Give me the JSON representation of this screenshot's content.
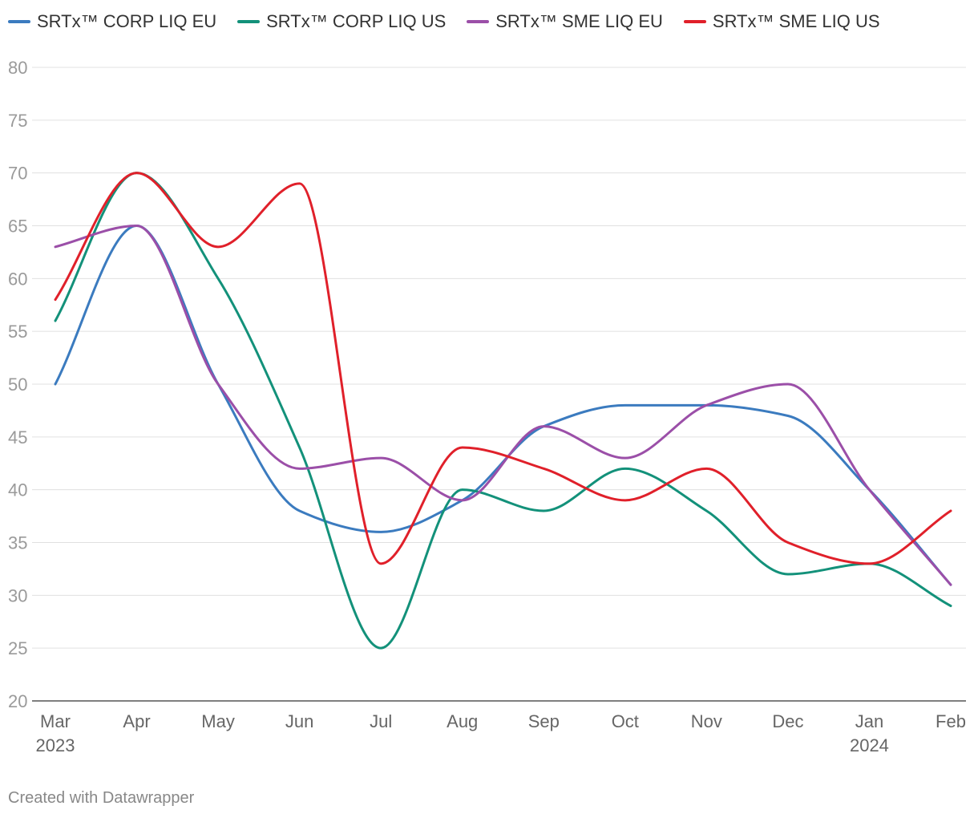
{
  "chart_data": {
    "type": "line",
    "title": "",
    "xlabel": "",
    "ylabel": "",
    "ylim": [
      20,
      80
    ],
    "yticks": [
      20,
      25,
      30,
      35,
      40,
      45,
      50,
      55,
      60,
      65,
      70,
      75,
      80
    ],
    "grid": true,
    "legend_position": "top-left",
    "categories": [
      "Mar",
      "Apr",
      "May",
      "Jun",
      "Jul",
      "Aug",
      "Sep",
      "Oct",
      "Nov",
      "Dec",
      "Jan",
      "Feb"
    ],
    "category_years": [
      "2023",
      "",
      "",
      "",
      "",
      "",
      "",
      "",
      "",
      "",
      "2024",
      ""
    ],
    "series": [
      {
        "name": "SRTx™ CORP LIQ EU",
        "color": "#3b7bbf",
        "values": [
          50,
          65,
          50,
          38,
          36,
          39,
          46,
          48,
          48,
          47,
          40,
          31
        ]
      },
      {
        "name": "SRTx™ CORP LIQ US",
        "color": "#13917a",
        "values": [
          56,
          70,
          60,
          44,
          25,
          40,
          38,
          42,
          38,
          32,
          33,
          29
        ]
      },
      {
        "name": "SRTx™ SME LIQ EU",
        "color": "#9b4fa8",
        "values": [
          63,
          65,
          50,
          42,
          43,
          39,
          46,
          43,
          48,
          50,
          40,
          31
        ]
      },
      {
        "name": "SRTx™ SME LIQ US",
        "color": "#e0202a",
        "values": [
          58,
          70,
          63,
          69,
          33,
          44,
          42,
          39,
          42,
          35,
          33,
          38
        ]
      }
    ]
  },
  "footer": {
    "credit": "Created with Datawrapper"
  }
}
